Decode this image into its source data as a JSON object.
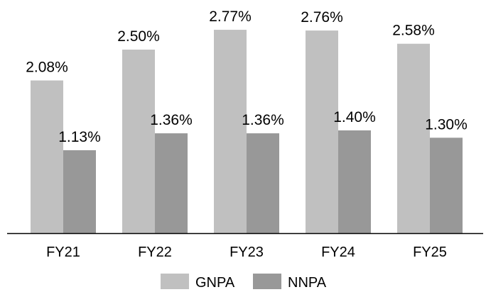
{
  "chart_data": {
    "type": "bar",
    "categories": [
      "FY21",
      "FY22",
      "FY23",
      "FY24",
      "FY25"
    ],
    "series": [
      {
        "name": "GNPA",
        "values": [
          2.08,
          2.5,
          2.77,
          2.76,
          2.58
        ],
        "labels": [
          "2.08%",
          "2.50%",
          "2.77%",
          "2.76%",
          "2.58%"
        ],
        "color": "#c0c0c0"
      },
      {
        "name": "NNPA",
        "values": [
          1.13,
          1.36,
          1.36,
          1.4,
          1.3
        ],
        "labels": [
          "1.13%",
          "1.36%",
          "1.36%",
          "1.40%",
          "1.30%"
        ],
        "color": "#989898"
      }
    ],
    "ylim": [
      0,
      3.1
    ],
    "grid": false,
    "legend_position": "bottom",
    "axis_color": "#000000"
  }
}
